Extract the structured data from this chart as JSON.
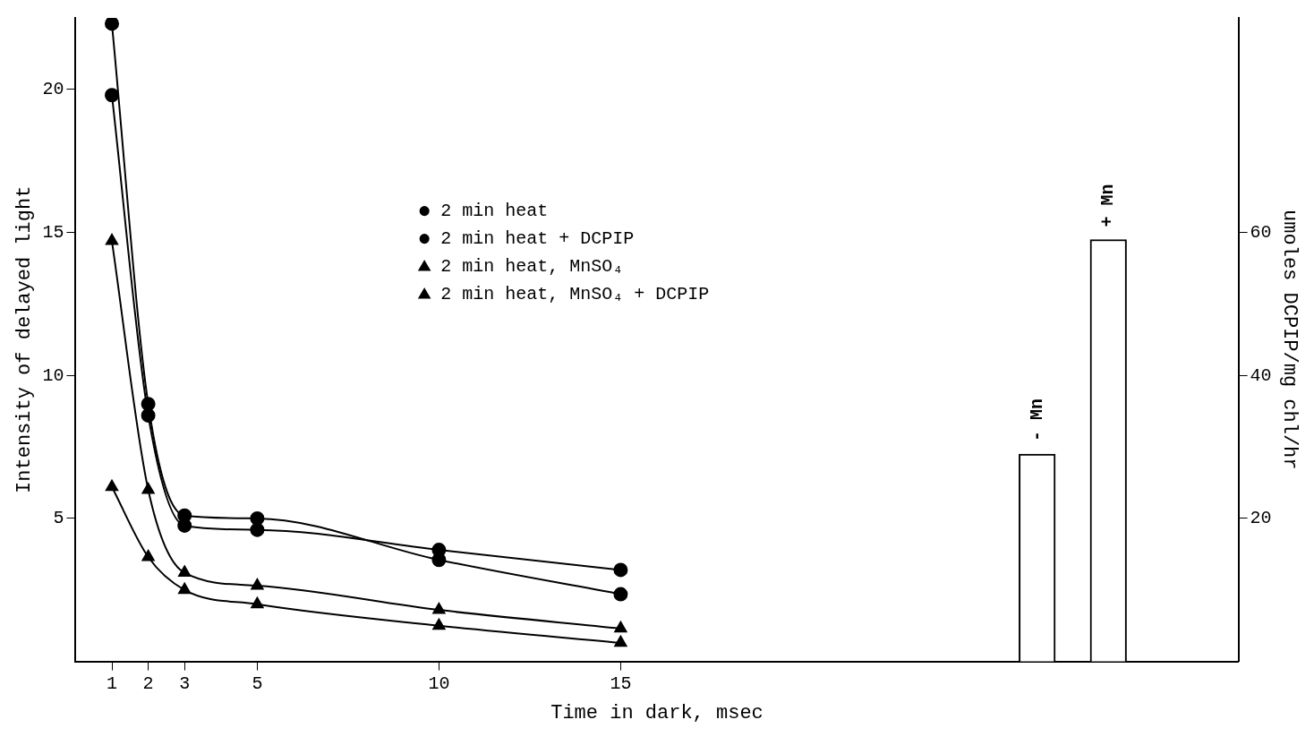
{
  "chart_data": {
    "type": "line",
    "xlabel": "Time in dark, msec",
    "ylabel": "Intensity of delayed light",
    "y2label": "umoles DCPIP/mg chl/hr",
    "xlim": [
      0,
      32
    ],
    "xticks": [
      1,
      2,
      3,
      5,
      10,
      15
    ],
    "ylim": [
      0,
      22.5
    ],
    "yticks": [
      5,
      10,
      15,
      20
    ],
    "y2lim": [
      0,
      90
    ],
    "y2ticks": [
      20,
      40,
      60
    ],
    "grid": false,
    "legend": "top",
    "line_style": "solid",
    "series": [
      {
        "name": "2 min heat",
        "color": "#000000",
        "marker": "circle",
        "x": [
          1,
          2,
          3,
          5,
          10,
          15
        ],
        "values": [
          22.3,
          9.0,
          5.1,
          5.0,
          3.55,
          2.35
        ]
      },
      {
        "name": "2 min heat + DCPIP",
        "color": "#000000",
        "marker": "circle",
        "x": [
          1,
          2,
          3,
          5,
          10,
          15
        ],
        "values": [
          19.8,
          8.6,
          4.75,
          4.6,
          3.9,
          3.2
        ]
      },
      {
        "name": "2 min heat, MnSO₄",
        "color": "#000000",
        "marker": "triangle",
        "x": [
          1,
          2,
          3,
          5,
          10,
          15
        ],
        "values": [
          6.1,
          3.65,
          2.5,
          2.0,
          1.25,
          0.65
        ]
      },
      {
        "name": "2 min heat, MnSO₄ + DCPIP",
        "color": "#000000",
        "marker": "triangle",
        "x": [
          1,
          2,
          3,
          5,
          10,
          15
        ],
        "values": [
          14.7,
          6.0,
          3.1,
          2.65,
          1.8,
          1.15
        ]
      },
      {
        "type": "bar",
        "axis": "y2",
        "color": "#ffffff",
        "x": [
          26.46,
          28.42
        ],
        "values": [
          29,
          59
        ],
        "value_labels": [
          "- Mn",
          "+ Mn"
        ]
      }
    ]
  }
}
